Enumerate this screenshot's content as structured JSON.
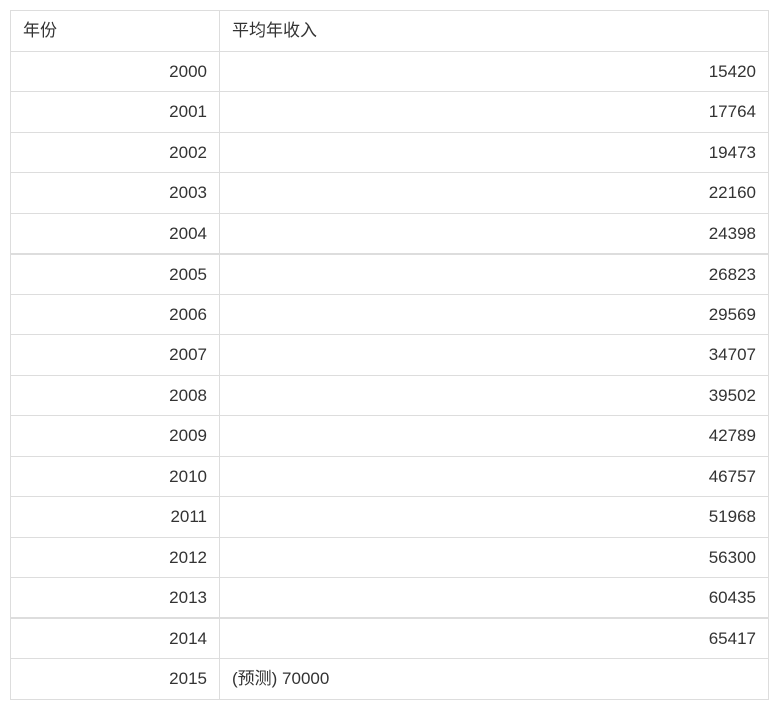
{
  "table": {
    "headers": [
      "年份",
      "平均年收入"
    ],
    "rows": [
      {
        "year": "2000",
        "income": "15420"
      },
      {
        "year": "2001",
        "income": "17764"
      },
      {
        "year": "2002",
        "income": "19473"
      },
      {
        "year": "2003",
        "income": "22160"
      },
      {
        "year": "2004",
        "income": "24398"
      },
      {
        "year": "2005",
        "income": "26823"
      },
      {
        "year": "2006",
        "income": "29569"
      },
      {
        "year": "2007",
        "income": "34707"
      },
      {
        "year": "2008",
        "income": "39502"
      },
      {
        "year": "2009",
        "income": "42789"
      },
      {
        "year": "2010",
        "income": "46757"
      },
      {
        "year": "2011",
        "income": "51968"
      },
      {
        "year": "2012",
        "income": "56300"
      },
      {
        "year": "2013",
        "income": "60435"
      },
      {
        "year": "2014",
        "income": "65417"
      },
      {
        "year": "2015",
        "income": "(预测) 70000"
      }
    ]
  },
  "colors": {
    "border": "#dddddd",
    "text": "#333333",
    "background": "#ffffff"
  }
}
